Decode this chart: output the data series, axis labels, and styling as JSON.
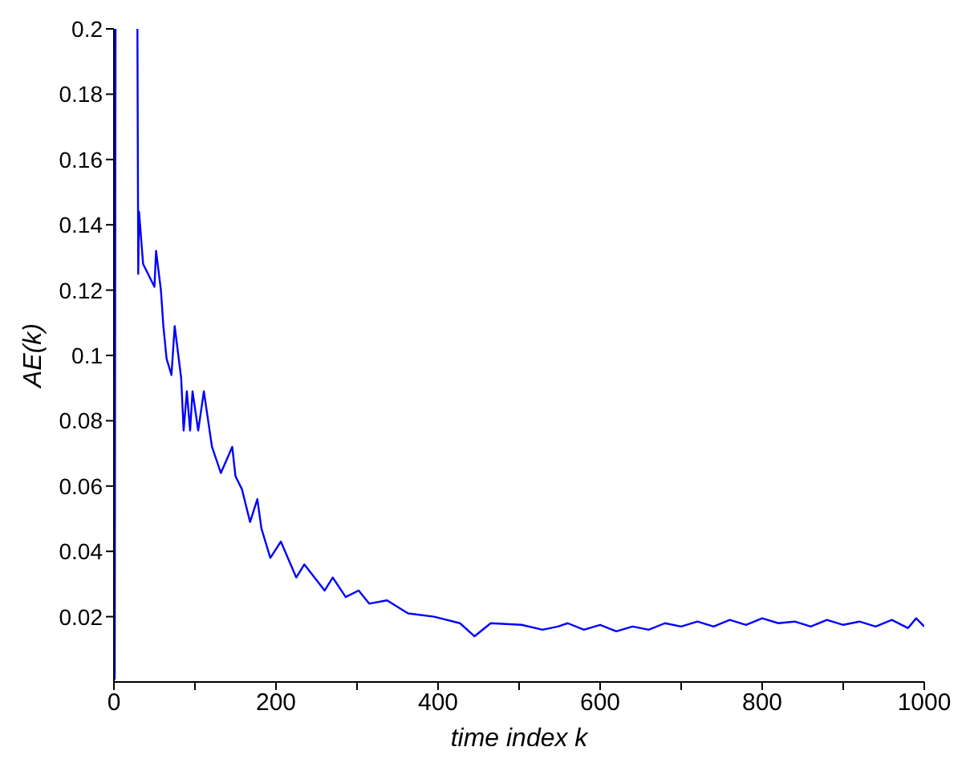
{
  "chart_data": {
    "type": "line",
    "xlabel": "time index k",
    "ylabel": "AE(k)",
    "x": [
      0,
      1,
      2,
      3,
      29,
      30,
      31,
      36,
      50,
      52,
      58,
      61,
      65,
      71,
      75,
      83,
      86,
      90,
      94,
      97,
      104,
      111,
      121,
      132,
      146,
      150,
      158,
      168,
      177,
      182,
      193,
      206,
      225,
      235,
      260,
      270,
      286,
      302,
      315,
      337,
      363,
      395,
      427,
      445,
      465,
      503,
      529,
      548,
      560,
      580,
      600,
      620,
      640,
      660,
      680,
      700,
      720,
      740,
      760,
      780,
      800,
      820,
      840,
      860,
      880,
      900,
      920,
      940,
      960,
      980,
      990,
      1000
    ],
    "values": [
      0.2,
      0.001,
      0.2,
      null,
      0.2,
      0.125,
      0.144,
      0.128,
      0.121,
      0.132,
      0.12,
      0.109,
      0.099,
      0.094,
      0.109,
      0.093,
      0.077,
      0.089,
      0.077,
      0.089,
      0.077,
      0.089,
      0.072,
      0.064,
      0.072,
      0.063,
      0.059,
      0.049,
      0.056,
      0.047,
      0.038,
      0.043,
      0.032,
      0.036,
      0.028,
      0.032,
      0.026,
      0.028,
      0.024,
      0.025,
      0.021,
      0.02,
      0.018,
      0.014,
      0.018,
      0.0175,
      0.016,
      0.017,
      0.018,
      0.016,
      0.0175,
      0.0155,
      0.017,
      0.016,
      0.018,
      0.017,
      0.0185,
      0.017,
      0.019,
      0.0175,
      0.0195,
      0.018,
      0.0185,
      0.017,
      0.019,
      0.0175,
      0.0185,
      0.017,
      0.019,
      0.0165,
      0.0195,
      0.017
    ],
    "color": "#0000ff",
    "xlim": [
      0,
      1000
    ],
    "xticks": [
      0,
      {
        "value": 100,
        "label": null
      },
      200,
      {
        "value": 300,
        "label": null
      },
      400,
      {
        "value": 500,
        "label": null
      },
      600,
      {
        "value": 700,
        "label": null
      },
      800,
      {
        "value": 900,
        "label": null
      },
      1000
    ],
    "ylim": [
      0,
      0.2
    ],
    "yticks": [
      0.02,
      0.04,
      0.06,
      0.08,
      0.1,
      0.12,
      0.14,
      0.16,
      0.18,
      0.2
    ]
  }
}
